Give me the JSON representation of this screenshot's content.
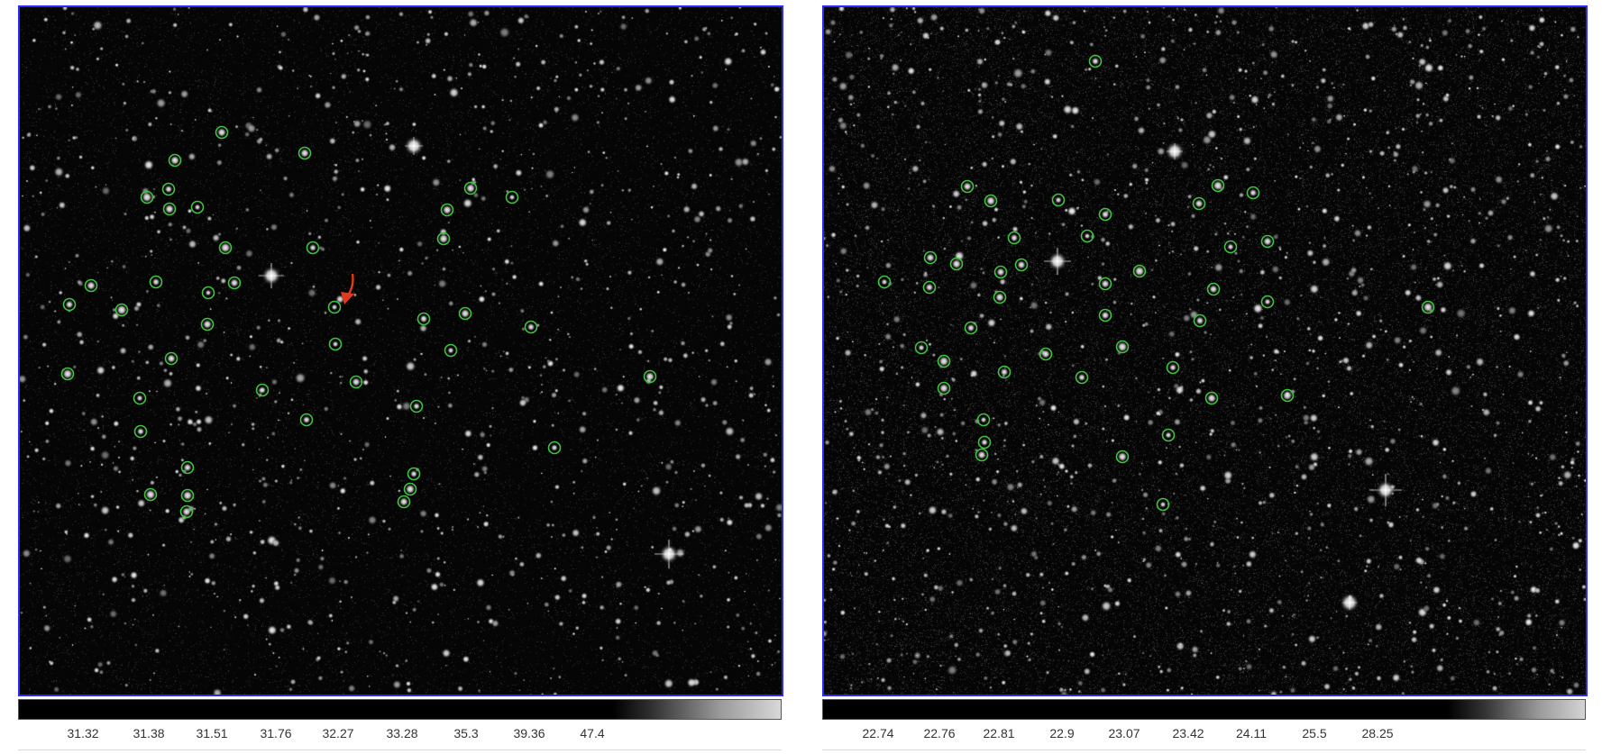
{
  "panels": [
    {
      "id": "left",
      "colorbar_ticks": [
        "31.32",
        "31.38",
        "31.51",
        "31.76",
        "32.27",
        "33.28",
        "35.3",
        "39.36",
        "47.4"
      ],
      "annotation": {
        "type": "arrow",
        "color": "#e03a1e"
      },
      "region_color": "#3ec43e"
    },
    {
      "id": "right",
      "colorbar_ticks": [
        "22.74",
        "22.76",
        "22.81",
        "22.9",
        "23.07",
        "23.42",
        "24.11",
        "25.5",
        "28.25"
      ],
      "region_color": "#3ec43e"
    }
  ],
  "colors": {
    "frame_border": "#2a2aff",
    "region_circle": "#3ec43e",
    "background": "#050505"
  }
}
